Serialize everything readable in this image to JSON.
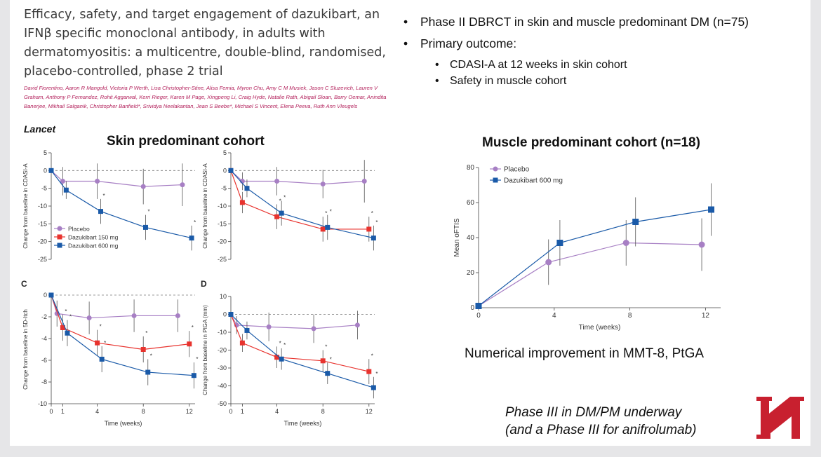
{
  "paper": {
    "title": "Efficacy, safety, and target engagement of dazukibart, an IFNβ specific monoclonal antibody, in adults with dermatomyositis: a multicentre, double-blind, randomised, placebo-controlled, phase 2 trial",
    "authors": "David Fiorentino, Aaron R Mangold, Victoria P Werth, Lisa Christopher-Stine, Alisa Femia, Myron Chu, Amy C M Musiek, Jason C Sluzevich, Lauren V Graham, Anthony P Fernandez, Rohit Aggarwal, Kerri Rieger, Karen M Page, Xingpeng Li, Craig Hyde, Natalie Rath, Abigail Sloan, Barry Oemar, Anindita Banerjee, Mikhail Salganik, Christopher Banfield*, Srividya Neelakantan, Jean S Beebe*, Michael S Vincent, Elena Peeva, Ruth Ann Vleugels",
    "journal": "Lancet"
  },
  "bullets": {
    "b1": "Phase II DBRCT in skin and muscle predominant DM (n=75)",
    "b2": "Primary outcome:",
    "b2a": "CDASI-A at 12 weeks in skin cohort",
    "b2b": "Safety in muscle cohort"
  },
  "skin_heading": "Skin predominant cohort",
  "muscle_heading": "Muscle predominant cohort (n=18)",
  "muscle_note": "Numerical improvement in MMT-8, PtGA",
  "phase3_line1": "Phase III in DM/PM underway",
  "phase3_line2": "(and a Phase III for anifrolumab)",
  "colors": {
    "placebo": "#a77fc4",
    "d150": "#e8332e",
    "d600": "#1a5aa8",
    "logo": "#c8202f"
  },
  "chart_data": [
    {
      "id": "A",
      "type": "line",
      "panel_letter": "",
      "ylabel": "Change from baseline in CDASI-A",
      "xlabel": "",
      "ylim": [
        -25,
        5
      ],
      "yticks": [
        5,
        0,
        -5,
        -10,
        -15,
        -20,
        -25
      ],
      "xticks": [
        0,
        1,
        4,
        8,
        12
      ],
      "xlim": [
        0,
        12.5
      ],
      "show_xticks": false,
      "legend": [
        "Placebo",
        "Dazukibart 150 mg",
        "Dazukibart 600 mg"
      ],
      "series": [
        {
          "name": "Placebo",
          "color": "placebo",
          "marker": "circle",
          "x": [
            0,
            1,
            4,
            8,
            11.4
          ],
          "y": [
            0,
            -3,
            -3,
            -4.5,
            -4
          ],
          "err": [
            0,
            4,
            5,
            5,
            6
          ],
          "sig": []
        },
        {
          "name": "Dazukibart 600 mg",
          "color": "d600",
          "marker": "square",
          "x": [
            0,
            1.3,
            4.3,
            8.2,
            12.2
          ],
          "y": [
            0,
            -5.5,
            -11.5,
            -16,
            -19
          ],
          "err": [
            0,
            2.5,
            3.5,
            3.5,
            3.5
          ],
          "sig": [
            2,
            3,
            4
          ]
        }
      ]
    },
    {
      "id": "B",
      "type": "line",
      "panel_letter": "",
      "ylabel": "Change from baseline in CDASI-A",
      "xlabel": "",
      "ylim": [
        -25,
        5
      ],
      "yticks": [
        5,
        0,
        -5,
        -10,
        -15,
        -20,
        -25
      ],
      "xticks": [
        0,
        1,
        4,
        8,
        12
      ],
      "xlim": [
        0,
        12.5
      ],
      "show_xticks": false,
      "legend": [],
      "series": [
        {
          "name": "Placebo",
          "color": "placebo",
          "marker": "circle",
          "x": [
            0,
            1,
            4,
            8,
            11.6
          ],
          "y": [
            0,
            -3,
            -3,
            -3.8,
            -3
          ],
          "err": [
            0,
            2.5,
            4,
            4,
            6
          ],
          "sig": []
        },
        {
          "name": "Dazukibart 150 mg",
          "color": "d150",
          "marker": "square",
          "x": [
            0,
            1,
            4,
            8,
            12
          ],
          "y": [
            0,
            -9,
            -13,
            -16.5,
            -16.5
          ],
          "err": [
            0,
            3,
            3.5,
            3.5,
            3.5
          ],
          "sig": [
            1,
            2,
            3,
            4
          ]
        },
        {
          "name": "Dazukibart 600 mg",
          "color": "d600",
          "marker": "square",
          "x": [
            0,
            1.4,
            4.4,
            8.4,
            12.4
          ],
          "y": [
            0,
            -5,
            -12,
            -16,
            -19
          ],
          "err": [
            0,
            2.5,
            3.5,
            3.5,
            3.5
          ],
          "sig": [
            2,
            3,
            4
          ]
        }
      ]
    },
    {
      "id": "C",
      "type": "line",
      "panel_letter": "C",
      "ylabel": "Change from baseline in 5D-Itch",
      "xlabel": "Time (weeks)",
      "ylim": [
        -10,
        0
      ],
      "yticks": [
        0,
        -2,
        -4,
        -6,
        -8,
        -10
      ],
      "xticks": [
        0,
        1,
        4,
        8,
        12
      ],
      "xlim": [
        0,
        12.5
      ],
      "show_xticks": true,
      "legend": [],
      "series": [
        {
          "name": "Placebo",
          "color": "placebo",
          "marker": "circle",
          "x": [
            0,
            0.5,
            3.3,
            7.2,
            11
          ],
          "y": [
            0,
            -1.7,
            -2.1,
            -1.9,
            -1.9
          ],
          "err": [
            0,
            1.2,
            1.5,
            1.5,
            1.5
          ],
          "sig": []
        },
        {
          "name": "Dazukibart 150 mg",
          "color": "d150",
          "marker": "square",
          "x": [
            0,
            1,
            4,
            8,
            12
          ],
          "y": [
            0,
            -3,
            -4.4,
            -5,
            -4.5
          ],
          "err": [
            0,
            1.2,
            1.2,
            1.2,
            1.2
          ],
          "sig": [
            1,
            2,
            3,
            4
          ]
        },
        {
          "name": "Dazukibart 600 mg",
          "color": "d600",
          "marker": "square",
          "x": [
            0,
            1.4,
            4.4,
            8.4,
            12.4
          ],
          "y": [
            0,
            -3.5,
            -5.9,
            -7.1,
            -7.4
          ],
          "err": [
            0,
            1.2,
            1.2,
            1.2,
            1.2
          ],
          "sig": [
            1,
            2,
            3,
            4
          ]
        }
      ]
    },
    {
      "id": "D",
      "type": "line",
      "panel_letter": "D",
      "ylabel": "Change from baseline in PtGA (mm)",
      "xlabel": "Time (weeks)",
      "ylim": [
        -50,
        10
      ],
      "yticks": [
        10,
        0,
        -10,
        -20,
        -30,
        -40,
        -50
      ],
      "xticks": [
        0,
        1,
        4,
        8,
        12
      ],
      "xlim": [
        0,
        12.5
      ],
      "show_xticks": true,
      "legend": [],
      "series": [
        {
          "name": "Placebo",
          "color": "placebo",
          "marker": "circle",
          "x": [
            0,
            0.5,
            3.3,
            7.2,
            11
          ],
          "y": [
            0,
            -6,
            -7,
            -8,
            -6
          ],
          "err": [
            0,
            5,
            8,
            8,
            8
          ],
          "sig": []
        },
        {
          "name": "Dazukibart 150 mg",
          "color": "d150",
          "marker": "square",
          "x": [
            0,
            1,
            4,
            8,
            12
          ],
          "y": [
            0,
            -16,
            -24,
            -26,
            -32
          ],
          "err": [
            0,
            5,
            6,
            6,
            7
          ],
          "sig": [
            1,
            2,
            3,
            4
          ]
        },
        {
          "name": "Dazukibart 600 mg",
          "color": "d600",
          "marker": "square",
          "x": [
            0,
            1.4,
            4.4,
            8.4,
            12.4
          ],
          "y": [
            0,
            -9,
            -25,
            -33,
            -41
          ],
          "err": [
            0,
            5,
            6,
            6,
            6
          ],
          "sig": [
            2,
            3,
            4
          ]
        }
      ]
    },
    {
      "id": "M",
      "type": "line",
      "panel_letter": "",
      "ylabel": "Mean oFTIS",
      "xlabel": "Time (weeks)",
      "ylim": [
        0,
        80
      ],
      "yticks": [
        0,
        20,
        40,
        60,
        80
      ],
      "xticks": [
        0,
        4,
        8,
        12
      ],
      "xlim": [
        0,
        12.8
      ],
      "show_xticks": true,
      "legend": [
        "Placebo",
        "Dazukibart 600 mg"
      ],
      "series": [
        {
          "name": "Placebo",
          "color": "placebo",
          "marker": "circle",
          "x": [
            0,
            3.7,
            7.8,
            11.8
          ],
          "y": [
            1,
            26,
            37,
            36
          ],
          "err": [
            0,
            13,
            13,
            15
          ],
          "sig": []
        },
        {
          "name": "Dazukibart 600 mg",
          "color": "d600",
          "marker": "square",
          "x": [
            0,
            4.3,
            8.3,
            12.3
          ],
          "y": [
            1,
            37,
            49,
            56
          ],
          "err": [
            0,
            13,
            14,
            15
          ],
          "sig": []
        }
      ]
    }
  ]
}
